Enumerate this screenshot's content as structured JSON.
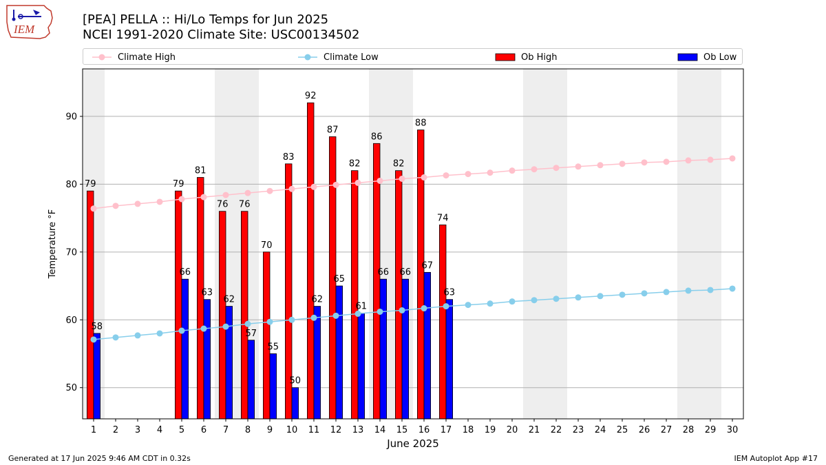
{
  "header": {
    "title_line1": "[PEA] PELLA :: Hi/Lo Temps for Jun 2025",
    "title_line2": "NCEI 1991-2020 Climate Site: USC00134502"
  },
  "logo": {
    "text": "IEM",
    "icon": "iowa-state-weather-logo"
  },
  "legend": {
    "placement": "top",
    "items": [
      {
        "label": "Climate High",
        "color": "#ffc0cb",
        "kind": "line"
      },
      {
        "label": "Climate Low",
        "color": "#87ceeb",
        "kind": "line"
      },
      {
        "label": "Ob High",
        "color": "#ff0000",
        "kind": "bar"
      },
      {
        "label": "Ob Low",
        "color": "#0000ff",
        "kind": "bar"
      }
    ]
  },
  "footer": {
    "left": "Generated at 17 Jun 2025 9:46 AM CDT in 0.32s",
    "right": "IEM Autoplot App #17"
  },
  "chart_data": {
    "type": "bar",
    "xlabel": "June 2025",
    "ylabel": "Temperature °F",
    "ylim": [
      45.4,
      97
    ],
    "xlim": [
      0.5,
      30.5
    ],
    "yticks": [
      50,
      60,
      70,
      80,
      90
    ],
    "grid": "horizontal",
    "x": [
      1,
      2,
      3,
      4,
      5,
      6,
      7,
      8,
      9,
      10,
      11,
      12,
      13,
      14,
      15,
      16,
      17,
      18,
      19,
      20,
      21,
      22,
      23,
      24,
      25,
      26,
      27,
      28,
      29,
      30
    ],
    "weekend_bands": [
      [
        1,
        1
      ],
      [
        7,
        8
      ],
      [
        14,
        15
      ],
      [
        21,
        22
      ],
      [
        28,
        29
      ]
    ],
    "series": [
      {
        "name": "Ob High",
        "type": "bar",
        "color": "#ff0000",
        "values": [
          79,
          null,
          null,
          null,
          79,
          81,
          76,
          76,
          70,
          83,
          92,
          87,
          82,
          86,
          82,
          88,
          74,
          null,
          null,
          null,
          null,
          null,
          null,
          null,
          null,
          null,
          null,
          null,
          null,
          null
        ]
      },
      {
        "name": "Ob Low",
        "type": "bar",
        "color": "#0000ff",
        "values": [
          58,
          null,
          null,
          null,
          66,
          63,
          62,
          57,
          55,
          50,
          62,
          65,
          61,
          66,
          66,
          67,
          63,
          null,
          null,
          null,
          null,
          null,
          null,
          null,
          null,
          null,
          null,
          null,
          null,
          null
        ]
      },
      {
        "name": "Climate High",
        "type": "line",
        "color": "#ffc0cb",
        "values": [
          76.4,
          76.8,
          77.1,
          77.4,
          77.8,
          78.1,
          78.4,
          78.7,
          79.0,
          79.3,
          79.6,
          79.9,
          80.2,
          80.5,
          80.8,
          81.0,
          81.3,
          81.5,
          81.7,
          82.0,
          82.2,
          82.4,
          82.6,
          82.8,
          83.0,
          83.2,
          83.3,
          83.5,
          83.6,
          83.8
        ]
      },
      {
        "name": "Climate Low",
        "type": "line",
        "color": "#87ceeb",
        "values": [
          57.1,
          57.4,
          57.7,
          58.0,
          58.4,
          58.7,
          59.0,
          59.4,
          59.7,
          60.0,
          60.3,
          60.6,
          60.9,
          61.2,
          61.4,
          61.7,
          62.0,
          62.2,
          62.4,
          62.7,
          62.9,
          63.1,
          63.3,
          63.5,
          63.7,
          63.9,
          64.1,
          64.3,
          64.4,
          64.6
        ]
      }
    ]
  }
}
